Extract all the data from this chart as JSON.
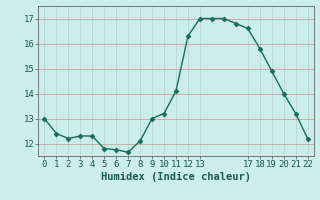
{
  "x": [
    0,
    1,
    2,
    3,
    4,
    5,
    6,
    7,
    8,
    9,
    10,
    11,
    12,
    13,
    14,
    15,
    16,
    17,
    18,
    19,
    20,
    21,
    22
  ],
  "y": [
    13.0,
    12.4,
    12.2,
    12.3,
    12.3,
    11.8,
    11.75,
    11.65,
    12.1,
    13.0,
    13.2,
    14.1,
    16.3,
    17.0,
    17.0,
    17.0,
    16.8,
    16.6,
    15.8,
    14.9,
    14.0,
    13.2,
    12.2
  ],
  "line_color": "#1a6b5a",
  "marker": "D",
  "marker_size": 2.5,
  "background_color": "#cceee8",
  "hgrid_color": "#d4a0a0",
  "vgrid_color": "#b8d8d4",
  "xlabel": "Humidex (Indice chaleur)",
  "ylim": [
    11.5,
    17.5
  ],
  "xlim": [
    -0.5,
    22.5
  ],
  "yticks": [
    12,
    13,
    14,
    15,
    16,
    17
  ],
  "xticks": [
    0,
    1,
    2,
    3,
    4,
    5,
    6,
    7,
    8,
    9,
    10,
    11,
    12,
    13,
    17,
    18,
    19,
    20,
    21,
    22
  ],
  "tick_fontsize": 6.5,
  "xlabel_fontsize": 7.5,
  "linewidth": 1.0
}
